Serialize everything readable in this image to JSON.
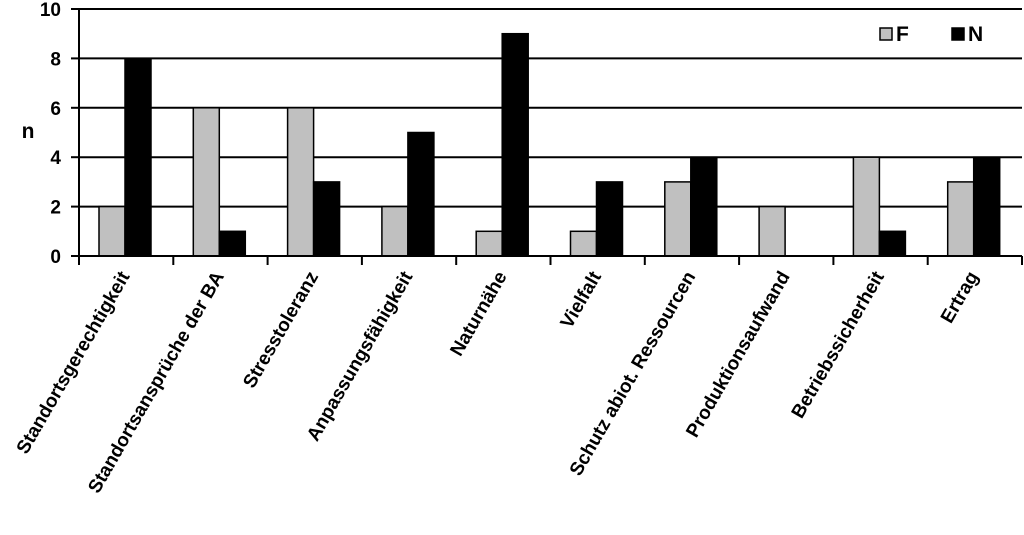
{
  "chart_data": {
    "type": "bar",
    "title": "",
    "xlabel": "",
    "ylabel": "n",
    "ylim": [
      0,
      10
    ],
    "yticks": [
      "0",
      "2",
      "4",
      "6",
      "8",
      "10"
    ],
    "grid": true,
    "legend_position": "top-right",
    "categories": [
      "Standortsgerechtigkeit",
      "Standortsansprüche der BA",
      "Stresstoleranz",
      "Anpassungsfähigkeit",
      "Naturnähe",
      "Vielfalt",
      "Schutz abiot. Ressourcen",
      "Produktionsaufwand",
      "Betriebssicherheit",
      "Ertrag"
    ],
    "series": [
      {
        "name": "F",
        "color": "#c0c0c0",
        "values": [
          2,
          6,
          6,
          2,
          1,
          1,
          3,
          2,
          4,
          3
        ]
      },
      {
        "name": "N",
        "color": "#000000",
        "values": [
          8,
          1,
          3,
          5,
          9,
          3,
          4,
          0,
          1,
          4
        ]
      }
    ]
  }
}
